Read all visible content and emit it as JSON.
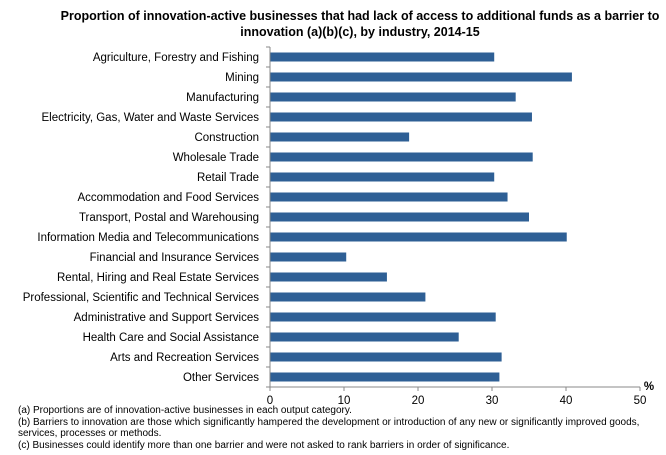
{
  "chart_data": {
    "type": "bar",
    "orientation": "horizontal",
    "title": "Proportion of innovation-active businesses  that had lack of access to additional funds as a barrier to innovation (a)(b)(c), by industry, 2014-15",
    "xlabel": "%",
    "ylabel": "",
    "xlim": [
      0,
      50
    ],
    "xticks": [
      "0",
      "10",
      "20",
      "30",
      "40",
      "50"
    ],
    "grid": false,
    "bar_color": "#2E5F95",
    "categories": [
      "Agriculture, Forestry and Fishing",
      "Mining",
      "Manufacturing",
      "Electricity, Gas, Water and Waste Services",
      "Construction",
      "Wholesale Trade",
      "Retail Trade",
      "Accommodation and Food Services",
      "Transport, Postal and Warehousing",
      "Information Media and Telecommunications",
      "Financial and Insurance Services",
      "Rental, Hiring and Real Estate Services",
      "Professional, Scientific and Technical Services",
      "Administrative and Support Services",
      "Health Care and Social Assistance",
      "Arts and Recreation Services",
      "Other Services"
    ],
    "values": [
      30.3,
      40.8,
      33.2,
      35.4,
      18.8,
      35.5,
      30.3,
      32.1,
      35.0,
      40.1,
      10.3,
      15.8,
      21.0,
      30.5,
      25.5,
      31.3,
      31.0
    ]
  },
  "notes": [
    "(a) Proportions are of innovation-active businesses in each output category.",
    "(b) Barriers to innovation are those which significantly hampered the development or introduction of any new or significantly improved goods, services, processes or methods.",
    "(c) Businesses could identify more than one barrier and were not asked to rank barriers in order of significance."
  ]
}
